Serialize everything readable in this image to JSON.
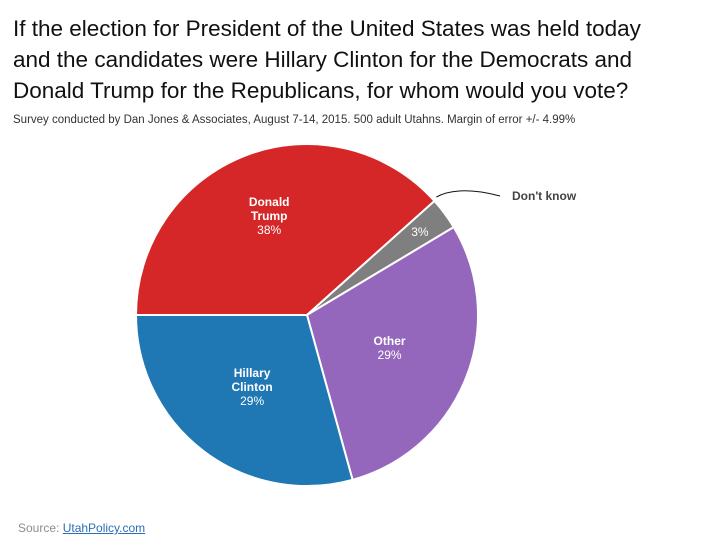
{
  "title_lines": [
    "If the election for President of the United States was held today",
    "and the candidates were Hillary Clinton for the Democrats and",
    "Donald Trump for the Republicans, for whom would you vote?"
  ],
  "subtitle": "Survey conducted by Dan Jones & Associates, August 7-14, 2015. 500 adult Utahns. Margin of error +/- 4.99%",
  "source": {
    "prefix": "Source: ",
    "link_text": "UtahPolicy.com"
  },
  "chart_data": {
    "type": "pie",
    "title": "If the election for President of the United States was held today and the candidates were Hillary Clinton for the Democrats and Donald Trump for the Republicans, for whom would you vote?",
    "start": "9 o'clock, clockwise",
    "slices": [
      {
        "name_lines": [
          "Donald",
          "Trump"
        ],
        "value": 38,
        "label": "38%",
        "color": "#d62728"
      },
      {
        "name_lines": [
          "Don't know"
        ],
        "value": 3,
        "label": "3%",
        "color": "#7f7f7f",
        "external_label": true
      },
      {
        "name_lines": [
          "Other"
        ],
        "value": 29,
        "label": "29%",
        "color": "#9467bd"
      },
      {
        "name_lines": [
          "Hillary",
          "Clinton"
        ],
        "value": 29,
        "label": "29%",
        "color": "#1f77b4"
      }
    ]
  }
}
